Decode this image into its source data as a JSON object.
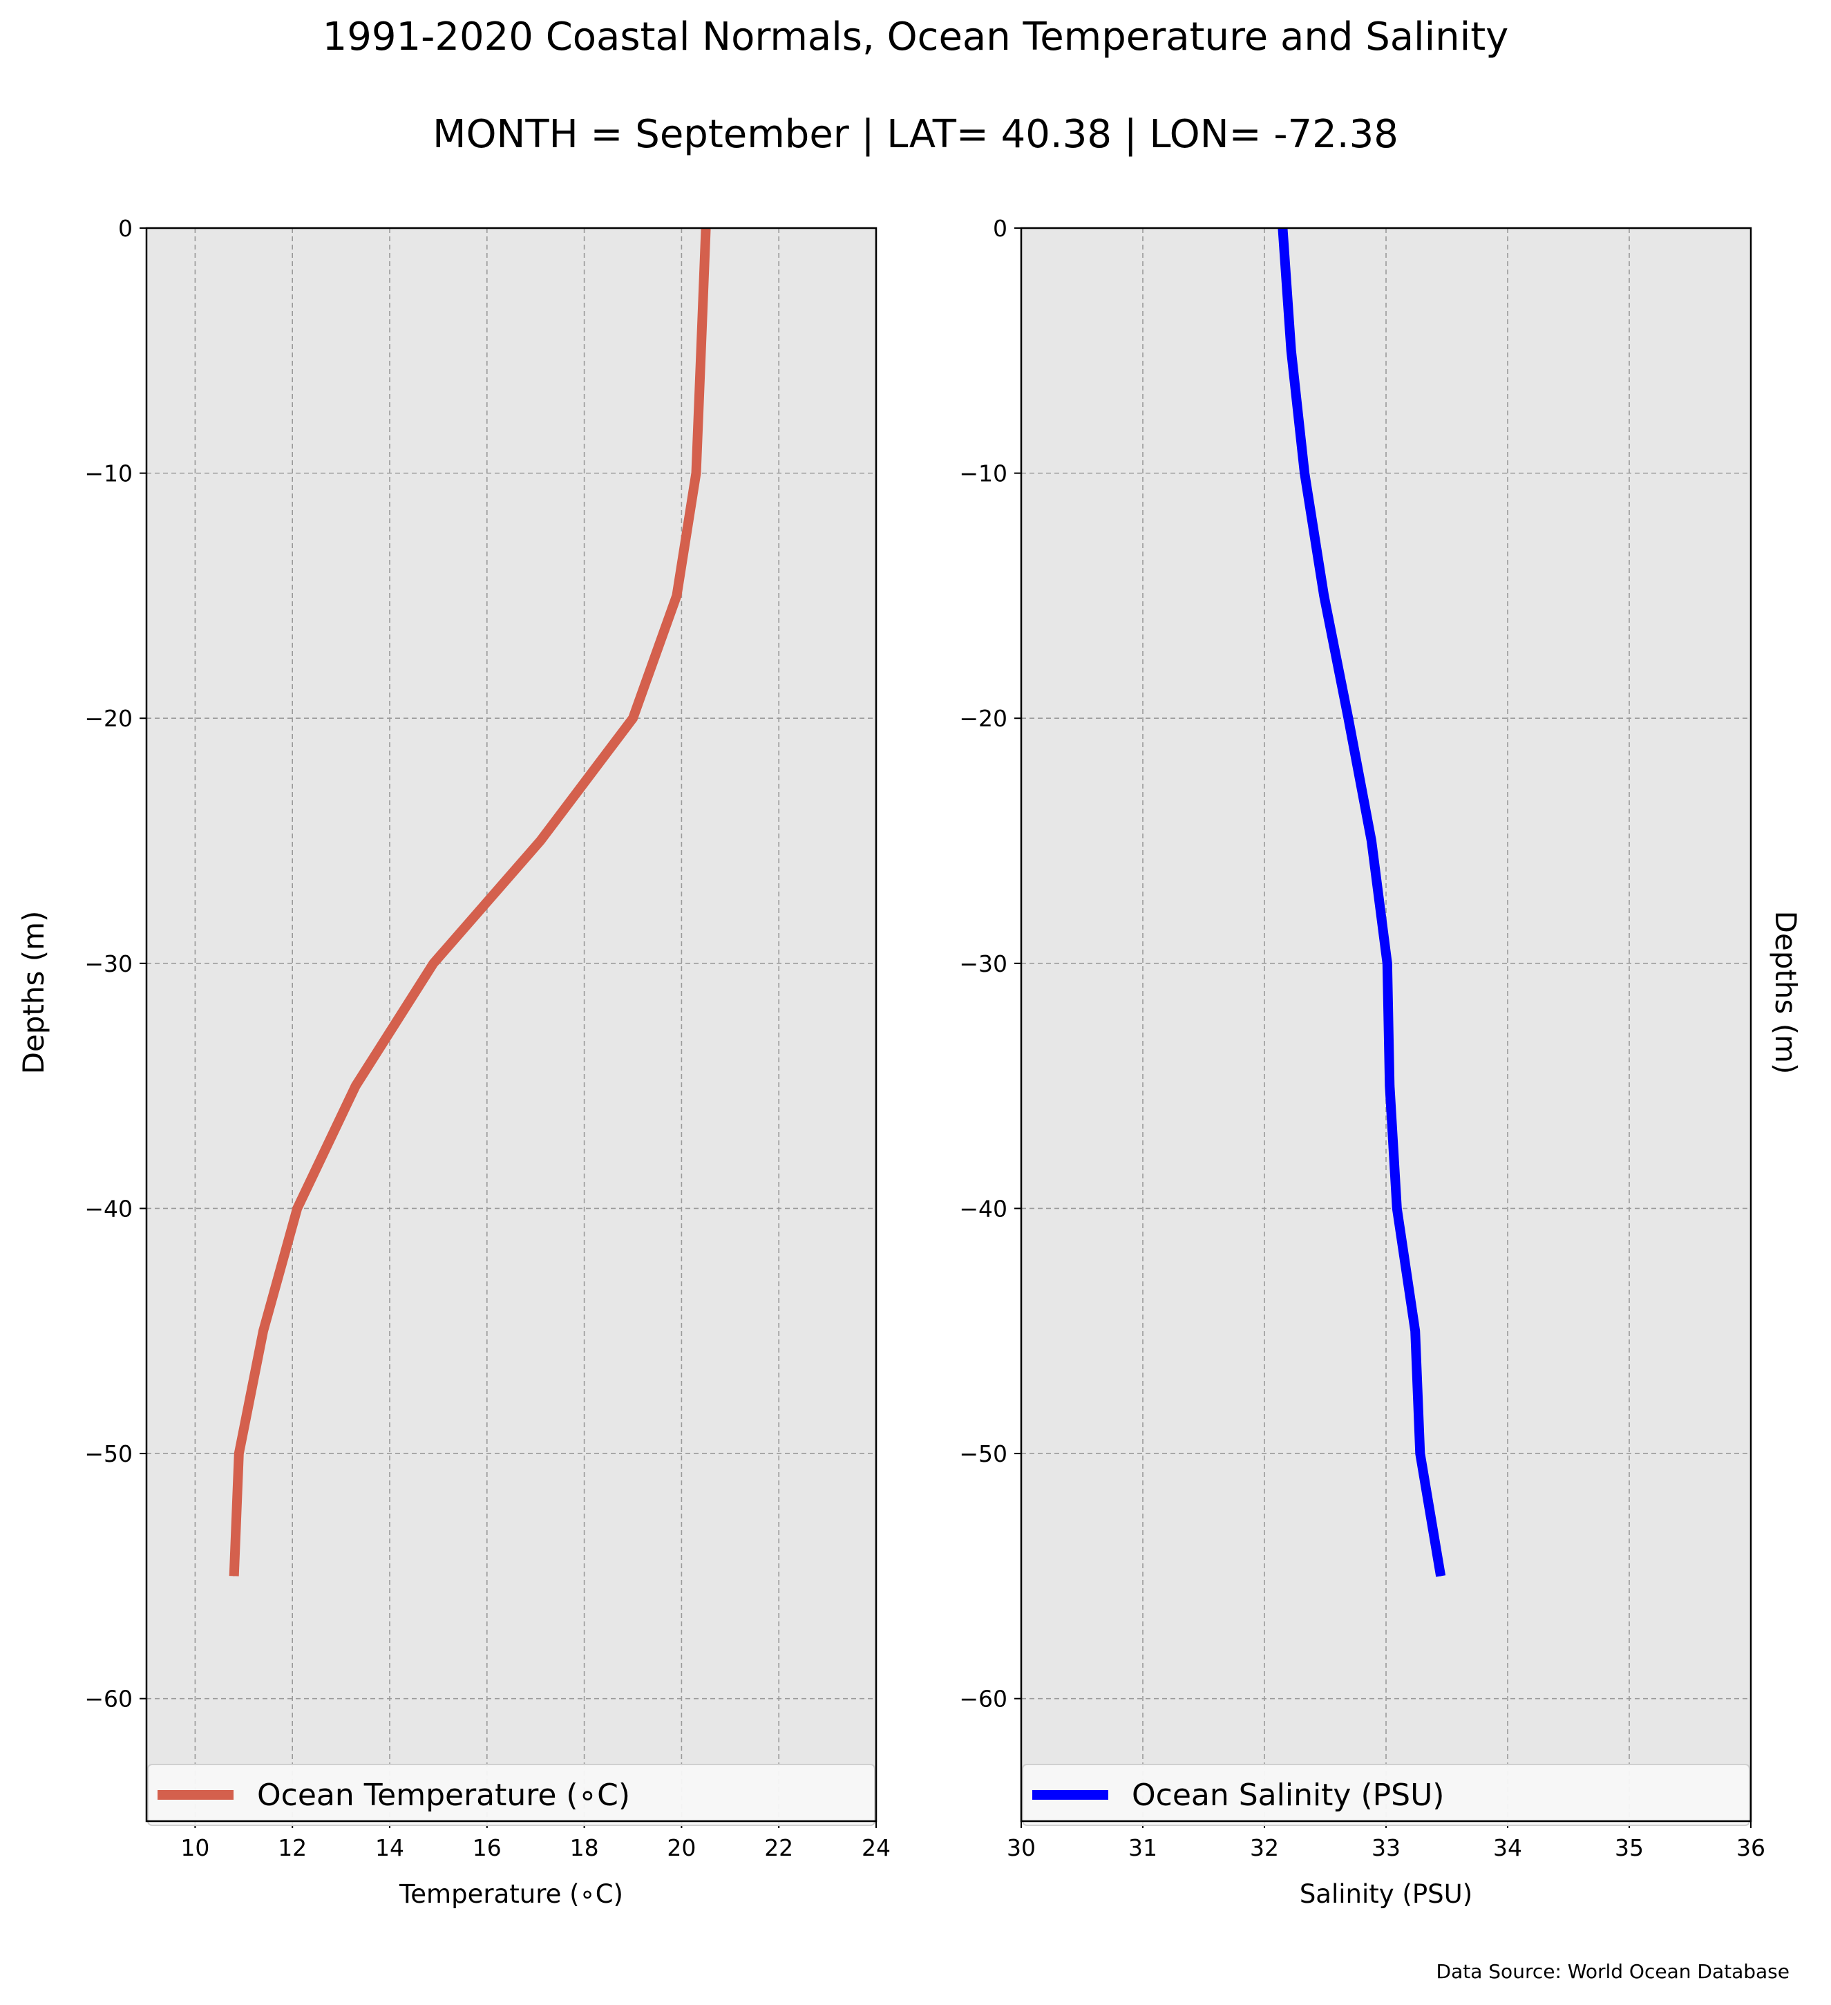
{
  "title": "1991-2020 Coastal Normals, Ocean Temperature and Salinity",
  "subtitle": "MONTH = September | LAT= 40.38 | LON= -72.38",
  "source": "Data Source: World Ocean Database",
  "colors": {
    "background": "#e7e7e7",
    "temperature": "#d4604d",
    "salinity": "#0000ff",
    "grid": "#9a9a9a"
  },
  "chart_data": [
    {
      "type": "line",
      "xlabel": "Temperature (∘C)",
      "ylabel": "Depths (m)",
      "xlim": [
        9,
        24
      ],
      "ylim": [
        -65,
        0
      ],
      "xticks": [
        "10",
        "12",
        "14",
        "16",
        "18",
        "20",
        "22",
        "24"
      ],
      "yticks": [
        "0",
        "−10",
        "−20",
        "−30",
        "−40",
        "−50",
        "−60"
      ],
      "grid": true,
      "legend_position": "bottom",
      "series": [
        {
          "name": "Ocean Temperature (∘C)",
          "x": [
            20.5,
            20.4,
            20.3,
            19.9,
            19.0,
            17.1,
            14.9,
            13.3,
            12.1,
            11.4,
            10.9,
            10.8
          ],
          "y": [
            0,
            -5,
            -10,
            -15,
            -20,
            -25,
            -30,
            -35,
            -40,
            -45,
            -50,
            -55
          ]
        }
      ]
    },
    {
      "type": "line",
      "xlabel": "Salinity (PSU)",
      "ylabel": "Depths (m)",
      "xlim": [
        30,
        36
      ],
      "ylim": [
        -65,
        0
      ],
      "xticks": [
        "30",
        "31",
        "32",
        "33",
        "34",
        "35",
        "36"
      ],
      "yticks": [
        "0",
        "−10",
        "−20",
        "−30",
        "−40",
        "−50",
        "−60"
      ],
      "grid": true,
      "legend_position": "bottom",
      "series": [
        {
          "name": "Ocean Salinity (PSU)",
          "x": [
            32.15,
            32.22,
            32.33,
            32.49,
            32.69,
            32.88,
            33.01,
            33.03,
            33.09,
            33.24,
            33.28,
            33.45
          ],
          "y": [
            0,
            -5,
            -10,
            -15,
            -20,
            -25,
            -30,
            -35,
            -40,
            -45,
            -50,
            -55
          ]
        }
      ]
    }
  ]
}
